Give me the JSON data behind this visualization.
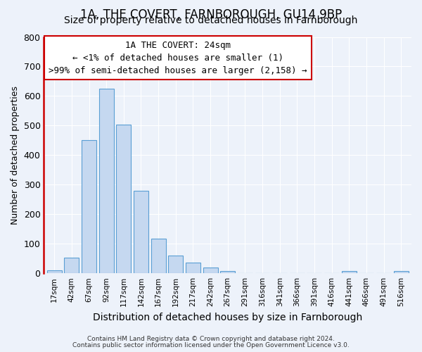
{
  "title": "1A, THE COVERT, FARNBOROUGH, GU14 9BP",
  "subtitle": "Size of property relative to detached houses in Farnborough",
  "xlabel": "Distribution of detached houses by size in Farnborough",
  "ylabel": "Number of detached properties",
  "bar_color": "#c5d8f0",
  "bar_edge_color": "#5a9fd4",
  "categories": [
    "17sqm",
    "42sqm",
    "67sqm",
    "92sqm",
    "117sqm",
    "142sqm",
    "167sqm",
    "192sqm",
    "217sqm",
    "242sqm",
    "267sqm",
    "291sqm",
    "316sqm",
    "341sqm",
    "366sqm",
    "391sqm",
    "416sqm",
    "441sqm",
    "466sqm",
    "491sqm",
    "516sqm"
  ],
  "values": [
    10,
    53,
    450,
    625,
    503,
    280,
    117,
    60,
    35,
    20,
    8,
    0,
    0,
    0,
    0,
    0,
    0,
    7,
    0,
    0,
    7
  ],
  "ylim": [
    0,
    800
  ],
  "yticks": [
    0,
    100,
    200,
    300,
    400,
    500,
    600,
    700,
    800
  ],
  "annotation_title": "1A THE COVERT: 24sqm",
  "annotation_line2": "← <1% of detached houses are smaller (1)",
  "annotation_line3": ">99% of semi-detached houses are larger (2,158) →",
  "annotation_box_color": "#ffffff",
  "annotation_box_edge_color": "#cc0000",
  "footer1": "Contains HM Land Registry data © Crown copyright and database right 2024.",
  "footer2": "Contains public sector information licensed under the Open Government Licence v3.0.",
  "bg_color": "#edf2fa",
  "grid_color": "#ffffff",
  "title_fontsize": 12,
  "subtitle_fontsize": 10,
  "bar_width": 0.85,
  "ann_fontsize": 9
}
